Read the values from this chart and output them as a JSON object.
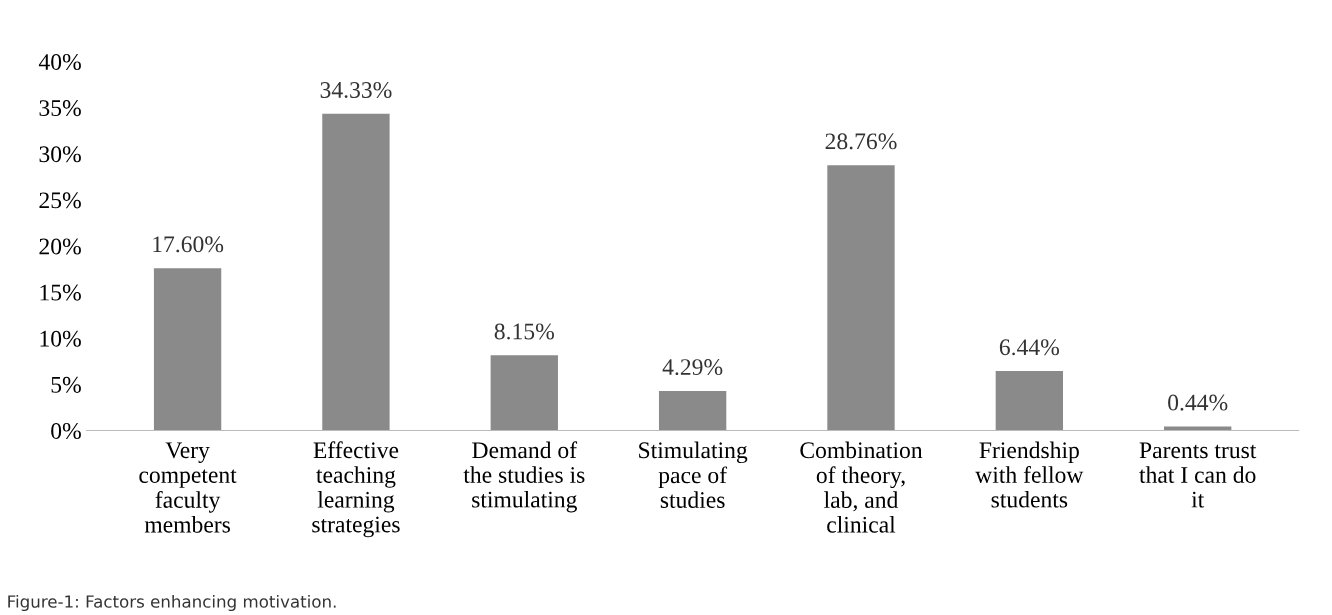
{
  "chart_data": {
    "type": "bar",
    "categories": [
      "Very\ncompetent\nfaculty\nmembers",
      "Effective\nteaching\nlearning\nstrategies",
      "Demand of\nthe studies is\nstimulating",
      "Stimulating\npace of\nstudies",
      "Combination\nof theory,\nlab, and\nclinical",
      "Friendship\nwith fellow\nstudents",
      "Parents trust\nthat I can do\nit"
    ],
    "values": [
      17.6,
      34.33,
      8.15,
      4.29,
      28.76,
      6.44,
      0.44
    ],
    "value_labels": [
      "17.60%",
      "34.33%",
      "8.15%",
      "4.29%",
      "28.76%",
      "6.44%",
      "0.44%"
    ],
    "color": "#8a8a8a",
    "ylim": [
      0,
      40
    ],
    "yticks": [
      {
        "value": 0,
        "label": "0%"
      },
      {
        "value": 5,
        "label": "5%"
      },
      {
        "value": 10,
        "label": "10%"
      },
      {
        "value": 15,
        "label": "15%"
      },
      {
        "value": 20,
        "label": "20%"
      },
      {
        "value": 25,
        "label": "25%"
      },
      {
        "value": 30,
        "label": "30%"
      },
      {
        "value": 35,
        "label": "35%"
      },
      {
        "value": 40,
        "label": "40%"
      }
    ],
    "grid": false,
    "annotations": [
      "Figure-1: Factors enhancing motivation."
    ]
  }
}
